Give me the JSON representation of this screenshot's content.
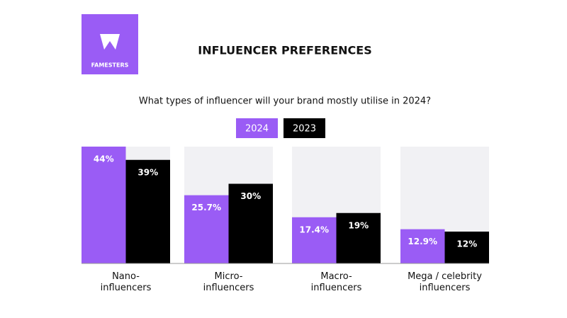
{
  "brand": "FAMESTERS",
  "chart_data": {
    "type": "bar",
    "title": "INFLUENCER PREFERENCES",
    "subtitle": "What types of influencer will your brand mostly utilise in 2024?",
    "categories": [
      "Nano-\ninfluencers",
      "Micro-\ninfluencers",
      "Macro-\ninfluencers",
      "Mega / celebrity\ninfluencers"
    ],
    "series": [
      {
        "name": "2024",
        "color": "#9a5cf5",
        "values": [
          44,
          25.7,
          17.4,
          12.9
        ],
        "value_labels": [
          "44%",
          "25.7%",
          "17.4%",
          "12.9%"
        ]
      },
      {
        "name": "2023",
        "color": "#000000",
        "values": [
          39,
          30,
          19,
          12
        ],
        "value_labels": [
          "39%",
          "30%",
          "19%",
          "12%"
        ]
      }
    ],
    "ylim": [
      0,
      44
    ]
  }
}
